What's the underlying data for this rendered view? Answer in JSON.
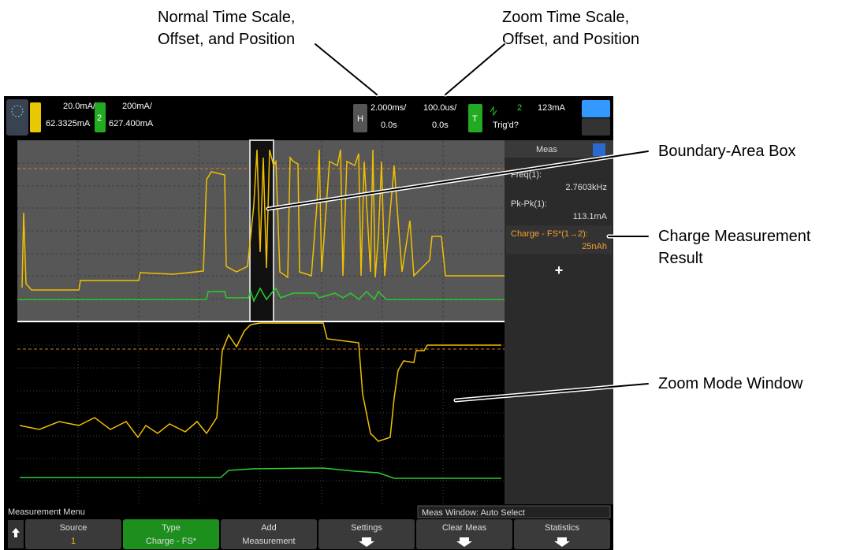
{
  "annotations": {
    "normal": [
      "Normal Time Scale,",
      "Offset, and Position"
    ],
    "zoom": [
      "Zoom Time Scale,",
      "Offset, and Position"
    ],
    "boundary": "Boundary-Area Box",
    "charge": [
      "Charge Measurement",
      "Result"
    ],
    "zoom_window": "Zoom Mode Window"
  },
  "header": {
    "ch1_scale": "20.0mA/",
    "ch1_offset": "62.3325mA",
    "ch2_label": "2",
    "ch2_scale": "200mA/",
    "ch2_offset": "627.400mA",
    "h_label": "H",
    "time_scale": "2.000ms/",
    "time_offset": "0.0s",
    "zoom_scale": "100.0us/",
    "zoom_offset": "0.0s",
    "t_label": "T",
    "trig_source": "2",
    "trig_level": "123mA",
    "trig_status": "Trig'd?"
  },
  "meas_panel": {
    "title": "Meas",
    "items": [
      {
        "label": "Freq(1):",
        "value": "2.7603kHz"
      },
      {
        "label": "Pk-Pk(1):",
        "value": "113.1mA"
      },
      {
        "label": "Charge - FS*(1→2):",
        "value": "25nAh"
      }
    ],
    "add": "+"
  },
  "menu": {
    "title": "Measurement Menu",
    "window": "Meas Window: Auto Select",
    "softkeys": [
      {
        "label": "Source",
        "value": "1"
      },
      {
        "label": "Type",
        "value": "Charge - FS*"
      },
      {
        "label": "Add",
        "value": "Measurement"
      },
      {
        "label": "Settings"
      },
      {
        "label": "Clear Meas"
      },
      {
        "label": "Statistics"
      }
    ]
  }
}
